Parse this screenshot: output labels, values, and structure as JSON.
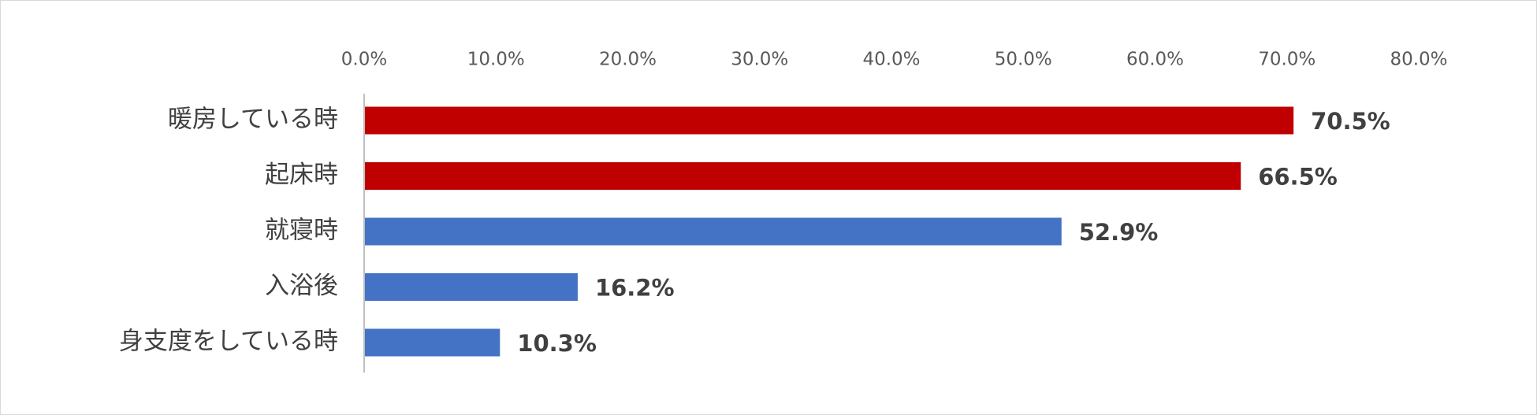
{
  "chart_data": {
    "type": "bar",
    "orientation": "horizontal",
    "categories": [
      "暖房している時",
      "起床時",
      "就寝時",
      "入浴後",
      "身支度をしている時"
    ],
    "values": [
      70.5,
      66.5,
      52.9,
      16.2,
      10.3
    ],
    "value_labels": [
      "70.5%",
      "66.5%",
      "52.9%",
      "16.2%",
      "10.3%"
    ],
    "bar_colors": [
      "#C00000",
      "#C00000",
      "#4472C4",
      "#4472C4",
      "#4472C4"
    ],
    "xlim": [
      0,
      80
    ],
    "x_ticks": [
      0,
      10,
      20,
      30,
      40,
      50,
      60,
      70,
      80
    ],
    "x_tick_labels": [
      "0.0%",
      "10.0%",
      "20.0%",
      "30.0%",
      "40.0%",
      "50.0%",
      "60.0%",
      "70.0%",
      "80.0%"
    ],
    "axis_position": "top",
    "grid": false,
    "legend": "none"
  }
}
